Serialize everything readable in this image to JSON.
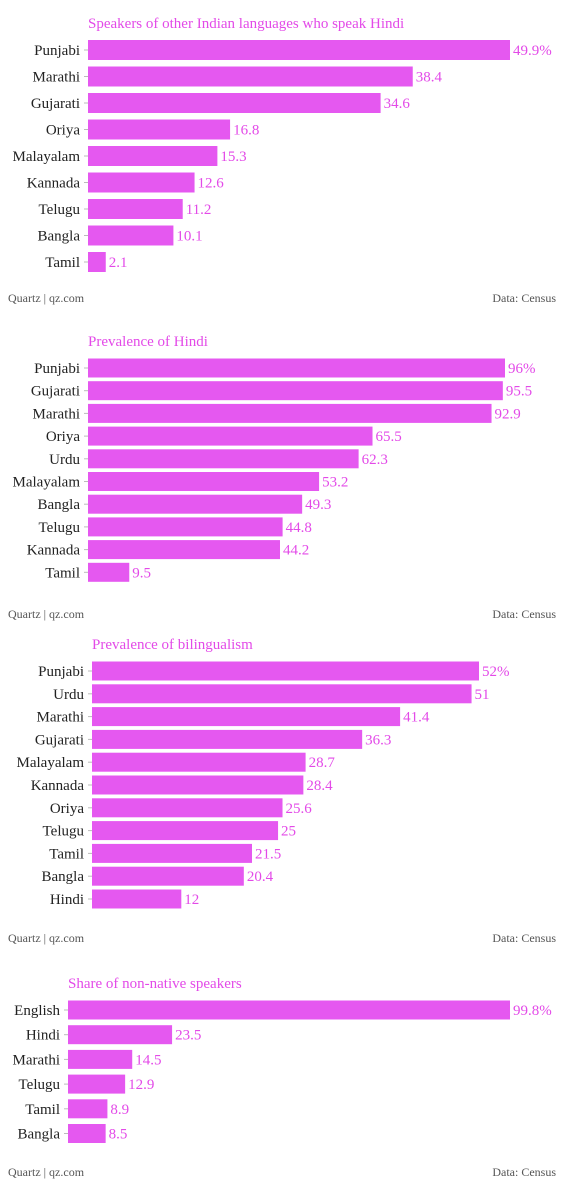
{
  "colors": {
    "bar": "#e558f0",
    "title": "#e34ae8",
    "value": "#e34ae8",
    "label": "#222222",
    "footer": "#555555"
  },
  "chart_data": [
    {
      "type": "bar",
      "orientation": "horizontal",
      "title": "Speakers of other Indian languages who speak Hindi",
      "categories": [
        "Punjabi",
        "Marathi",
        "Gujarati",
        "Oriya",
        "Malayalam",
        "Kannada",
        "Telugu",
        "Bangla",
        "Tamil"
      ],
      "values": [
        49.9,
        38.4,
        34.6,
        16.8,
        15.3,
        12.6,
        11.2,
        10.1,
        2.1
      ],
      "value_labels": [
        "49.9%",
        "38.4",
        "34.6",
        "16.8",
        "15.3",
        "12.6",
        "11.2",
        "10.1",
        "2.1"
      ],
      "credit": "Quartz | qz.com",
      "source": "Data: Census",
      "grid": false,
      "xlim": [
        0,
        49.9
      ]
    },
    {
      "type": "bar",
      "orientation": "horizontal",
      "title": "Prevalence of Hindi",
      "categories": [
        "Punjabi",
        "Gujarati",
        "Marathi",
        "Oriya",
        "Urdu",
        "Malayalam",
        "Bangla",
        "Telugu",
        "Kannada",
        "Tamil"
      ],
      "values": [
        96,
        95.5,
        92.9,
        65.5,
        62.3,
        53.2,
        49.3,
        44.8,
        44.2,
        9.5
      ],
      "value_labels": [
        "96%",
        "95.5",
        "92.9",
        "65.5",
        "62.3",
        "53.2",
        "49.3",
        "44.8",
        "44.2",
        "9.5"
      ],
      "credit": "Quartz | qz.com",
      "source": "Data: Census",
      "grid": false,
      "xlim": [
        0,
        96
      ]
    },
    {
      "type": "bar",
      "orientation": "horizontal",
      "title": "Prevalence of bilingualism",
      "categories": [
        "Punjabi",
        "Urdu",
        "Marathi",
        "Gujarati",
        "Malayalam",
        "Kannada",
        "Oriya",
        "Telugu",
        "Tamil",
        "Bangla",
        "Hindi"
      ],
      "values": [
        52,
        51,
        41.4,
        36.3,
        28.7,
        28.4,
        25.6,
        25,
        21.5,
        20.4,
        12
      ],
      "value_labels": [
        "52%",
        "51",
        "41.4",
        "36.3",
        "28.7",
        "28.4",
        "25.6",
        "25",
        "21.5",
        "20.4",
        "12"
      ],
      "credit": "Quartz | qz.com",
      "source": "Data: Census",
      "grid": false,
      "xlim": [
        0,
        52
      ]
    },
    {
      "type": "bar",
      "orientation": "horizontal",
      "title": "Share of non-native speakers",
      "categories": [
        "English",
        "Hindi",
        "Marathi",
        "Telugu",
        "Tamil",
        "Bangla"
      ],
      "values": [
        99.8,
        23.5,
        14.5,
        12.9,
        8.9,
        8.5
      ],
      "value_labels": [
        "99.8%",
        "23.5",
        "14.5",
        "12.9",
        "8.9",
        "8.5"
      ],
      "credit": "Quartz | qz.com",
      "source": "Data: Census",
      "grid": false,
      "xlim": [
        0,
        99.8
      ]
    }
  ]
}
